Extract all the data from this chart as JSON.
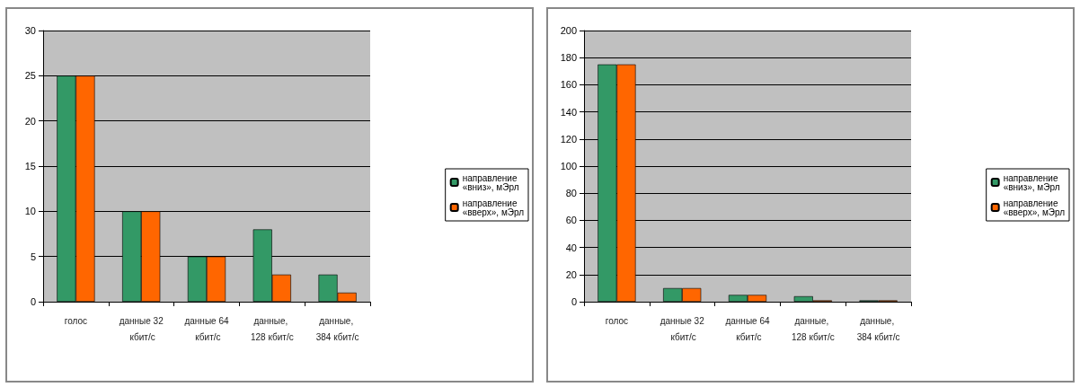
{
  "chart_data": [
    {
      "type": "bar",
      "categories": [
        "голос",
        "данные 32 кбит/с",
        "данные 64 кбит/с",
        "данные, 128 кбит/с",
        "данные, 384 кбит/с"
      ],
      "series": [
        {
          "name": "направление «вниз», мЭрл",
          "color": "#339966",
          "values": [
            25,
            10,
            5,
            8,
            3
          ]
        },
        {
          "name": "направление «вверх», мЭрл",
          "color": "#ff6600",
          "values": [
            25,
            10,
            5,
            3,
            1
          ]
        }
      ],
      "ylim": [
        0,
        30
      ],
      "yticks": [
        0,
        5,
        10,
        15,
        20,
        25,
        30
      ],
      "grid": "y",
      "legend": "right"
    },
    {
      "type": "bar",
      "categories": [
        "голос",
        "данные 32 кбит/с",
        "данные 64 кбит/с",
        "данные, 128 кбит/с",
        "данные, 384 кбит/с"
      ],
      "series": [
        {
          "name": "направление «вниз», мЭрл",
          "color": "#339966",
          "values": [
            175,
            10,
            5,
            4,
            1
          ]
        },
        {
          "name": "направление «вверх», мЭрл",
          "color": "#ff6600",
          "values": [
            175,
            10,
            5,
            1,
            1
          ]
        }
      ],
      "ylim": [
        0,
        200
      ],
      "yticks": [
        0,
        20,
        40,
        60,
        80,
        100,
        120,
        140,
        160,
        180,
        200
      ],
      "grid": "y",
      "legend": "right"
    }
  ]
}
